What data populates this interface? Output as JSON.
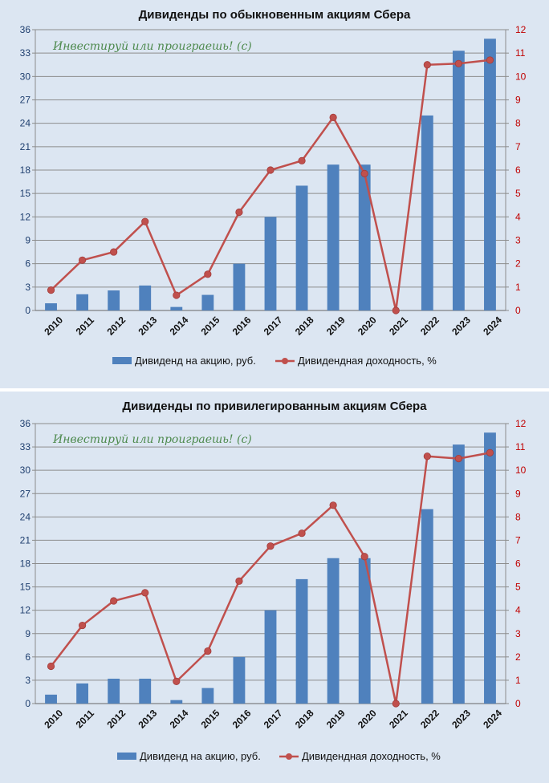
{
  "colors": {
    "background": "#dce6f2",
    "bar": "#4f81bd",
    "line": "#c0504d",
    "left_axis_text": "#1f3f6f",
    "right_axis_text": "#c00000",
    "grid": "#8c8c8c",
    "watermark": "#4e8a4e"
  },
  "chart_data": [
    {
      "type": "bar+line",
      "title": "Дивиденды по обыкновенным  акциям Сбера",
      "watermark": "Инвестируй или проиграешь! (с)",
      "categories": [
        "2010",
        "2011",
        "2012",
        "2013",
        "2014",
        "2015",
        "2016",
        "2017",
        "2018",
        "2019",
        "2020",
        "2021",
        "2022",
        "2023",
        "2024"
      ],
      "left_axis": {
        "min": 0,
        "max": 36,
        "ticks": [
          "0",
          "3",
          "6",
          "9",
          "12",
          "15",
          "18",
          "21",
          "24",
          "27",
          "30",
          "33",
          "36"
        ]
      },
      "right_axis": {
        "min": 0,
        "max": 12,
        "ticks": [
          "0",
          "1",
          "2",
          "3",
          "4",
          "5",
          "6",
          "7",
          "8",
          "9",
          "10",
          "11",
          "12"
        ]
      },
      "series": [
        {
          "name": "Дивиденд на акцию, руб.",
          "kind": "bar",
          "axis": "left",
          "values": [
            0.92,
            2.08,
            2.57,
            3.2,
            0.45,
            2.0,
            6.0,
            12.0,
            16.0,
            18.7,
            18.7,
            0,
            25.0,
            33.3,
            34.84
          ]
        },
        {
          "name": "Дивидендная доходность, %",
          "kind": "line",
          "axis": "right",
          "values": [
            0.87,
            2.15,
            2.5,
            3.8,
            0.65,
            1.55,
            4.2,
            6.0,
            6.4,
            8.25,
            5.85,
            0,
            10.5,
            10.55,
            10.7
          ]
        }
      ]
    },
    {
      "type": "bar+line",
      "title": "Дивиденды по привилегированным  акциям Сбера",
      "watermark": "Инвестируй или проиграешь! (с)",
      "categories": [
        "2010",
        "2011",
        "2012",
        "2013",
        "2014",
        "2015",
        "2016",
        "2017",
        "2018",
        "2019",
        "2020",
        "2021",
        "2022",
        "2023",
        "2024"
      ],
      "left_axis": {
        "min": 0,
        "max": 36,
        "ticks": [
          "0",
          "3",
          "6",
          "9",
          "12",
          "15",
          "18",
          "21",
          "24",
          "27",
          "30",
          "33",
          "36"
        ]
      },
      "right_axis": {
        "min": 0,
        "max": 12,
        "ticks": [
          "0",
          "1",
          "2",
          "3",
          "4",
          "5",
          "6",
          "7",
          "8",
          "9",
          "10",
          "11",
          "12"
        ]
      },
      "series": [
        {
          "name": "Дивиденд на акцию, руб.",
          "kind": "bar",
          "axis": "left",
          "values": [
            1.15,
            2.59,
            3.2,
            3.2,
            0.45,
            2.0,
            6.0,
            12.0,
            16.0,
            18.7,
            18.7,
            0,
            25.0,
            33.3,
            34.84
          ]
        },
        {
          "name": "Дивидендная доходность, %",
          "kind": "line",
          "axis": "right",
          "values": [
            1.6,
            3.35,
            4.4,
            4.75,
            0.95,
            2.25,
            5.25,
            6.75,
            7.3,
            8.5,
            6.3,
            0,
            10.6,
            10.5,
            10.75
          ]
        }
      ]
    }
  ]
}
